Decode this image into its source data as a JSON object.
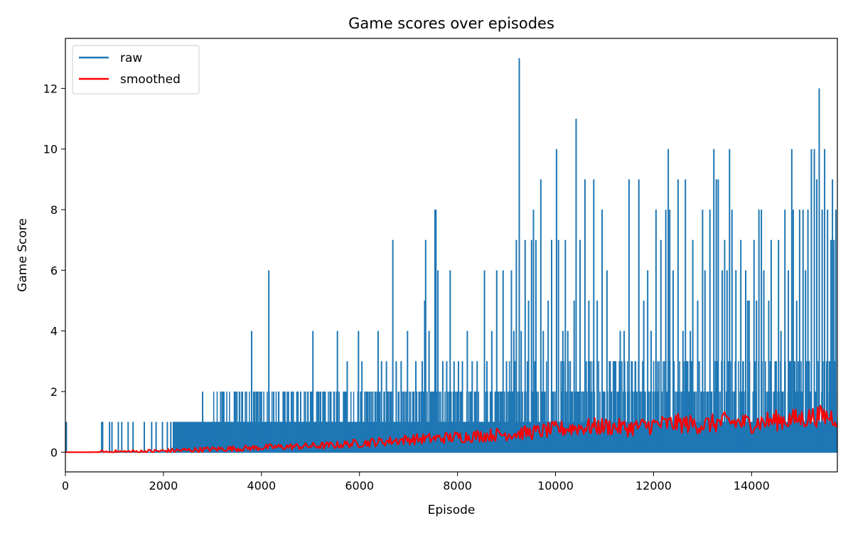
{
  "chart_data": {
    "type": "line",
    "title": "Game scores over episodes",
    "xlabel": "Episode",
    "ylabel": "Game Score",
    "xlim": [
      0,
      15750
    ],
    "ylim": [
      -0.65,
      13.65
    ],
    "x_ticks": [
      0,
      2000,
      4000,
      6000,
      8000,
      10000,
      12000,
      14000
    ],
    "y_ticks": [
      0,
      2,
      4,
      6,
      8,
      10,
      12
    ],
    "grid": false,
    "legend_position": "top-left",
    "colors": {
      "raw": "#1f77b4",
      "smoothed": "#ff0000"
    },
    "series": [
      {
        "name": "raw",
        "style": "vertical-spikes",
        "baseline": 0,
        "peaks": [
          [
            20,
            1
          ],
          [
            740,
            1
          ],
          [
            760,
            1
          ],
          [
            900,
            1
          ],
          [
            950,
            1
          ],
          [
            1080,
            1
          ],
          [
            1150,
            1
          ],
          [
            1280,
            1
          ],
          [
            1380,
            1
          ],
          [
            1610,
            1
          ],
          [
            1760,
            1
          ],
          [
            1850,
            1
          ],
          [
            1980,
            1
          ],
          [
            2080,
            1
          ],
          [
            2150,
            1
          ],
          [
            2250,
            1
          ],
          [
            2800,
            2
          ],
          [
            3200,
            2
          ],
          [
            3220,
            2
          ],
          [
            3450,
            2
          ],
          [
            3500,
            2
          ],
          [
            3550,
            2
          ],
          [
            3600,
            2
          ],
          [
            3800,
            4
          ],
          [
            3980,
            2
          ],
          [
            4000,
            2
          ],
          [
            4150,
            6
          ],
          [
            4250,
            2
          ],
          [
            4350,
            2
          ],
          [
            4450,
            2
          ],
          [
            4550,
            2
          ],
          [
            4650,
            2
          ],
          [
            4800,
            2
          ],
          [
            4950,
            2
          ],
          [
            5050,
            4
          ],
          [
            5150,
            2
          ],
          [
            5300,
            2
          ],
          [
            5400,
            2
          ],
          [
            5480,
            2
          ],
          [
            5550,
            4
          ],
          [
            5700,
            2
          ],
          [
            5750,
            3
          ],
          [
            5980,
            4
          ],
          [
            6050,
            3
          ],
          [
            6150,
            2
          ],
          [
            6380,
            4
          ],
          [
            6450,
            3
          ],
          [
            6550,
            3
          ],
          [
            6680,
            7
          ],
          [
            6750,
            3
          ],
          [
            6850,
            3
          ],
          [
            6980,
            4
          ],
          [
            7150,
            3
          ],
          [
            7280,
            3
          ],
          [
            7330,
            5
          ],
          [
            7350,
            7
          ],
          [
            7420,
            4
          ],
          [
            7540,
            8
          ],
          [
            7560,
            8
          ],
          [
            7600,
            6
          ],
          [
            7700,
            3
          ],
          [
            7780,
            3
          ],
          [
            7850,
            6
          ],
          [
            7930,
            3
          ],
          [
            8020,
            3
          ],
          [
            8100,
            3
          ],
          [
            8200,
            4
          ],
          [
            8300,
            3
          ],
          [
            8400,
            3
          ],
          [
            8550,
            6
          ],
          [
            8600,
            3
          ],
          [
            8700,
            4
          ],
          [
            8800,
            6
          ],
          [
            8930,
            6
          ],
          [
            9000,
            3
          ],
          [
            9100,
            6
          ],
          [
            9150,
            4
          ],
          [
            9200,
            7
          ],
          [
            9260,
            13
          ],
          [
            9300,
            4
          ],
          [
            9380,
            7
          ],
          [
            9450,
            5
          ],
          [
            9510,
            7
          ],
          [
            9550,
            8
          ],
          [
            9600,
            7
          ],
          [
            9700,
            9
          ],
          [
            9750,
            4
          ],
          [
            9850,
            5
          ],
          [
            9920,
            7
          ],
          [
            10020,
            10
          ],
          [
            10060,
            7
          ],
          [
            10150,
            4
          ],
          [
            10200,
            7
          ],
          [
            10250,
            4
          ],
          [
            10300,
            3
          ],
          [
            10380,
            5
          ],
          [
            10420,
            11
          ],
          [
            10500,
            7
          ],
          [
            10600,
            9
          ],
          [
            10680,
            5
          ],
          [
            10780,
            9
          ],
          [
            10850,
            5
          ],
          [
            10950,
            8
          ],
          [
            11050,
            6
          ],
          [
            11100,
            3
          ],
          [
            11180,
            3
          ],
          [
            11320,
            4
          ],
          [
            11400,
            4
          ],
          [
            11500,
            9
          ],
          [
            11550,
            3
          ],
          [
            11700,
            9
          ],
          [
            11800,
            5
          ],
          [
            11880,
            6
          ],
          [
            11950,
            4
          ],
          [
            12050,
            8
          ],
          [
            12150,
            7
          ],
          [
            12250,
            8
          ],
          [
            12300,
            10
          ],
          [
            12330,
            8
          ],
          [
            12400,
            6
          ],
          [
            12500,
            9
          ],
          [
            12600,
            4
          ],
          [
            12650,
            9
          ],
          [
            12750,
            4
          ],
          [
            12800,
            7
          ],
          [
            12900,
            5
          ],
          [
            13000,
            8
          ],
          [
            13050,
            6
          ],
          [
            13150,
            8
          ],
          [
            13230,
            10
          ],
          [
            13280,
            9
          ],
          [
            13320,
            9
          ],
          [
            13400,
            6
          ],
          [
            13450,
            7
          ],
          [
            13500,
            6
          ],
          [
            13550,
            10
          ],
          [
            13600,
            8
          ],
          [
            13680,
            6
          ],
          [
            13780,
            7
          ],
          [
            13880,
            6
          ],
          [
            13920,
            5
          ],
          [
            13950,
            5
          ],
          [
            14050,
            7
          ],
          [
            14100,
            5
          ],
          [
            14150,
            8
          ],
          [
            14200,
            8
          ],
          [
            14250,
            6
          ],
          [
            14350,
            5
          ],
          [
            14400,
            7
          ],
          [
            14480,
            3
          ],
          [
            14550,
            7
          ],
          [
            14600,
            4
          ],
          [
            14680,
            8
          ],
          [
            14750,
            6
          ],
          [
            14820,
            10
          ],
          [
            14850,
            8
          ],
          [
            14920,
            5
          ],
          [
            14980,
            8
          ],
          [
            15050,
            8
          ],
          [
            15100,
            6
          ],
          [
            15150,
            8
          ],
          [
            15220,
            10
          ],
          [
            15280,
            10
          ],
          [
            15330,
            9
          ],
          [
            15380,
            12
          ],
          [
            15440,
            8
          ],
          [
            15490,
            10
          ],
          [
            15550,
            8
          ],
          [
            15620,
            7
          ],
          [
            15650,
            9
          ],
          [
            15680,
            7
          ],
          [
            15720,
            8
          ]
        ]
      },
      {
        "name": "smoothed",
        "style": "line",
        "points": [
          [
            0,
            0
          ],
          [
            500,
            0
          ],
          [
            1000,
            0.01
          ],
          [
            1500,
            0.02
          ],
          [
            2000,
            0.04
          ],
          [
            2500,
            0.07
          ],
          [
            3000,
            0.1
          ],
          [
            3500,
            0.12
          ],
          [
            4000,
            0.15
          ],
          [
            4500,
            0.18
          ],
          [
            5000,
            0.2
          ],
          [
            5500,
            0.23
          ],
          [
            6000,
            0.3
          ],
          [
            6500,
            0.35
          ],
          [
            7000,
            0.42
          ],
          [
            7500,
            0.45
          ],
          [
            8000,
            0.5
          ],
          [
            8500,
            0.55
          ],
          [
            9000,
            0.6
          ],
          [
            9500,
            0.65
          ],
          [
            10000,
            0.75
          ],
          [
            10500,
            0.82
          ],
          [
            11000,
            0.85
          ],
          [
            11500,
            0.8
          ],
          [
            12000,
            0.9
          ],
          [
            12500,
            0.95
          ],
          [
            13000,
            0.9
          ],
          [
            13500,
            1.0
          ],
          [
            14000,
            0.95
          ],
          [
            14500,
            1.05
          ],
          [
            15000,
            1.1
          ],
          [
            15400,
            1.2
          ],
          [
            15750,
            1.15
          ]
        ]
      }
    ]
  }
}
